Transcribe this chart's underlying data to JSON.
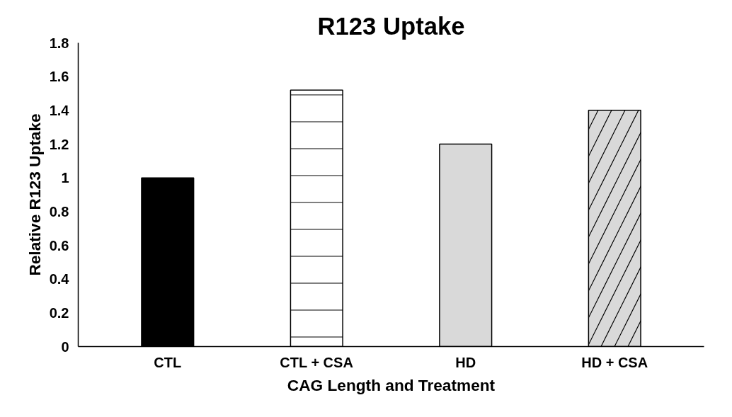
{
  "chart_data": {
    "type": "bar",
    "title": "R123 Uptake",
    "xlabel": "CAG Length and Treatment",
    "ylabel": "Relative R123 Uptake",
    "categories": [
      "CTL",
      "CTL + CSA",
      "HD",
      "HD + CSA"
    ],
    "values": [
      1.0,
      1.52,
      1.2,
      1.4
    ],
    "colors": [
      "#000000",
      "#ffffff",
      "#d9d9d9",
      "#d9d9d9"
    ],
    "ylim": [
      0,
      1.8
    ],
    "yticks": [
      0,
      {
        "value": 0.2,
        "label": "0.2"
      },
      {
        "value": 0.4,
        "label": "0.4"
      },
      {
        "value": 0.6,
        "label": "0.6"
      },
      {
        "value": 0.8,
        "label": "0.8"
      },
      1,
      {
        "value": 1.2,
        "label": "1.2"
      },
      {
        "value": 1.4,
        "label": "1.4"
      },
      {
        "value": 1.6,
        "label": "1.6"
      },
      {
        "value": 1.8,
        "label": "1.8"
      }
    ],
    "grid": false
  }
}
